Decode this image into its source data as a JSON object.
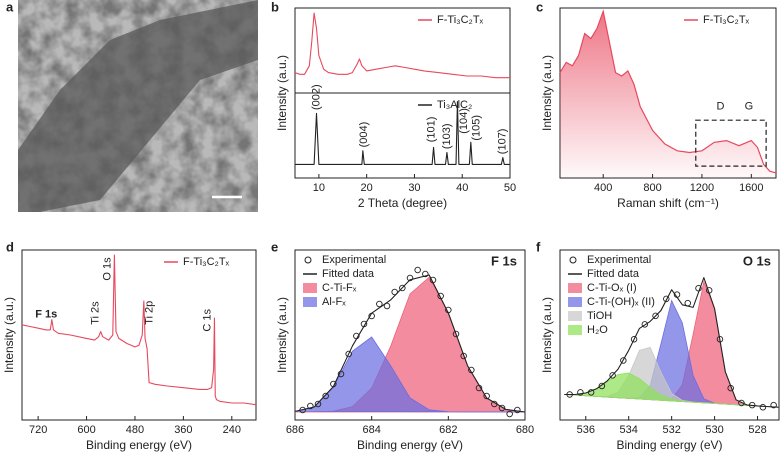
{
  "image_panel": {
    "panel_label": "a"
  },
  "chart_data": [
    {
      "type": "line",
      "panel_label": "b",
      "xlabel": "2 Theta (degree)",
      "ylabel": "Intensity (a.u.)",
      "xlim": [
        5,
        50
      ],
      "xticks": [
        10,
        20,
        30,
        40,
        50
      ],
      "ylim": [
        0,
        100
      ],
      "stacked_panels": true,
      "legend": "upper right",
      "series": [
        {
          "name": "F-Ti₃C₂Tₓ",
          "color": "#e8485e",
          "kind": "line",
          "x": [
            5,
            6,
            7,
            8,
            8.5,
            9,
            9.5,
            10,
            11,
            12,
            14,
            16,
            17,
            18,
            18.5,
            19,
            20,
            22,
            24,
            26,
            28,
            30,
            32,
            35,
            38,
            41,
            44,
            47,
            50
          ],
          "values": [
            62,
            61,
            61,
            66,
            80,
            97,
            88,
            72,
            64,
            62,
            61,
            61,
            62,
            67,
            70,
            66,
            63,
            64,
            65,
            66,
            65,
            64,
            63,
            62,
            61,
            60,
            60,
            59,
            59
          ]
        },
        {
          "name": "Ti₃AlC₂",
          "color": "#222222",
          "kind": "line",
          "x": [
            5,
            9,
            9.5,
            10,
            19,
            19.2,
            19.5,
            33.7,
            34,
            34.3,
            36.5,
            36.8,
            37.1,
            38.7,
            39,
            39.3,
            41.5,
            41.8,
            42.1,
            48.2,
            48.5,
            48.8,
            50
          ],
          "values": [
            8,
            8,
            38,
            8,
            8,
            16,
            8,
            8,
            18,
            8,
            8,
            15,
            8,
            8,
            45,
            8,
            8,
            21,
            8,
            8,
            12,
            8,
            8
          ]
        }
      ],
      "annotations": [
        {
          "text": "(002)",
          "x": 9.5,
          "y": 40,
          "orientation": "vertical"
        },
        {
          "text": "(004)",
          "x": 19.5,
          "y": 18,
          "orientation": "vertical"
        },
        {
          "text": "(101)",
          "x": 33.6,
          "y": 21,
          "orientation": "vertical"
        },
        {
          "text": "(103)",
          "x": 36.8,
          "y": 17,
          "orientation": "vertical"
        },
        {
          "text": "(104)",
          "x": 40.4,
          "y": 26,
          "orientation": "vertical"
        },
        {
          "text": "(105)",
          "x": 43,
          "y": 22,
          "orientation": "vertical"
        },
        {
          "text": "(107)",
          "x": 48.5,
          "y": 14,
          "orientation": "vertical"
        }
      ]
    },
    {
      "type": "line",
      "panel_label": "c",
      "xlabel": "Raman shift (cm⁻¹)",
      "ylabel": "Intensity (a.u.)",
      "xlim": [
        50,
        1800
      ],
      "xticks": [
        400,
        800,
        1200,
        1600
      ],
      "ylim": [
        0,
        100
      ],
      "legend": "upper right",
      "series": [
        {
          "name": "F-Ti₃C₂Tₓ",
          "color": "#e8485e",
          "kind": "area",
          "x": [
            50,
            100,
            150,
            200,
            250,
            300,
            350,
            400,
            450,
            500,
            550,
            600,
            650,
            700,
            800,
            900,
            1000,
            1100,
            1200,
            1300,
            1400,
            1500,
            1600,
            1650,
            1700,
            1750,
            1800
          ],
          "values": [
            62,
            68,
            66,
            72,
            85,
            82,
            88,
            98,
            80,
            62,
            60,
            63,
            55,
            42,
            28,
            20,
            16,
            15,
            16,
            21,
            22,
            19,
            22,
            18,
            8,
            4,
            3
          ]
        }
      ],
      "annotations": [
        {
          "text": "D",
          "x": 1350,
          "y": 42,
          "orientation": "horizontal"
        },
        {
          "text": "G",
          "x": 1580,
          "y": 42,
          "orientation": "horizontal"
        }
      ],
      "highlight_box": {
        "x": [
          1150,
          1720
        ],
        "y": [
          7,
          34
        ]
      }
    },
    {
      "type": "line",
      "panel_label": "d",
      "xlabel": "Binding energy (eV)",
      "ylabel": "Intensity (a.u.)",
      "xlim": [
        760,
        180
      ],
      "xticks": [
        720,
        600,
        480,
        360,
        240
      ],
      "ylim": [
        0,
        100
      ],
      "legend": "upper right",
      "series": [
        {
          "name": "F-Ti₃C₂Tₓ",
          "color": "#e8485e",
          "kind": "line",
          "x": [
            760,
            740,
            720,
            700,
            690,
            686,
            682,
            670,
            640,
            600,
            580,
            570,
            565,
            560,
            545,
            535,
            531,
            527,
            520,
            500,
            480,
            470,
            462,
            458,
            455,
            450,
            445,
            430,
            400,
            360,
            320,
            300,
            290,
            285,
            283,
            281,
            278,
            270,
            240,
            210,
            180
          ],
          "values": [
            56,
            55,
            54,
            53,
            53,
            59,
            53,
            51,
            50,
            48,
            47,
            49,
            52,
            49,
            47,
            50,
            97,
            52,
            48,
            45,
            43,
            44,
            50,
            70,
            48,
            42,
            22,
            21,
            20,
            19,
            18,
            18,
            19,
            30,
            60,
            14,
            12,
            11,
            10,
            10,
            9
          ]
        }
      ],
      "annotations": [
        {
          "text": "F 1s",
          "x": 700,
          "y": 62,
          "orientation": "horizontal",
          "color": "#e0304a",
          "weight": "bold"
        },
        {
          "text": "Ti 2s",
          "x": 578,
          "y": 56,
          "orientation": "vertical",
          "color": "#e0304a"
        },
        {
          "text": "O 1s",
          "x": 548,
          "y": 82,
          "orientation": "vertical",
          "color": "#e0304a"
        },
        {
          "text": "Ti 2p",
          "x": 444,
          "y": 56,
          "orientation": "vertical",
          "color": "#e0304a"
        },
        {
          "text": "C 1s",
          "x": 300,
          "y": 52,
          "orientation": "vertical",
          "color": "#e0304a"
        }
      ]
    },
    {
      "type": "line",
      "panel_label": "e",
      "title": "F 1s",
      "xlabel": "Binding energy (eV)",
      "ylabel": "Intensity (a.u.)",
      "xlim": [
        686,
        680
      ],
      "xticks": [
        686,
        684,
        682,
        680
      ],
      "ylim": [
        0,
        85
      ],
      "legend": "upper left",
      "series": [
        {
          "name": "Experimental",
          "color": "#222222",
          "kind": "scatter",
          "x": [
            685.8,
            685.6,
            685.4,
            685.2,
            685,
            684.8,
            684.6,
            684.4,
            684.2,
            684,
            683.8,
            683.6,
            683.4,
            683.2,
            683,
            682.8,
            682.6,
            682.4,
            682.2,
            682,
            681.8,
            681.6,
            681.4,
            681.2,
            681,
            680.8,
            680.6,
            680.4,
            680.2
          ],
          "values": [
            5,
            7,
            8,
            12,
            18,
            23,
            33,
            42,
            48,
            52,
            58,
            57,
            64,
            66,
            71,
            75,
            73,
            70,
            62,
            55,
            43,
            32,
            25,
            16,
            12,
            8,
            6,
            3,
            5
          ]
        },
        {
          "name": "Fitted data",
          "color": "#222222",
          "kind": "line",
          "x": [
            686,
            685.5,
            685,
            684.5,
            684,
            683.5,
            683,
            682.5,
            682,
            681.5,
            681,
            680.5,
            680
          ],
          "values": [
            4.3,
            6.5,
            16.7,
            37.1,
            53.4,
            60.1,
            70.1,
            72.5,
            53.5,
            27.2,
            11,
            5.3,
            4
          ]
        },
        {
          "name": "C-Ti-Fₓ",
          "color": "#f0607a",
          "kind": "peak",
          "x": [
            686,
            685.5,
            685,
            684.5,
            684,
            683.5,
            683,
            682.5,
            682,
            681.5,
            681,
            680.5,
            680
          ],
          "values": [
            4,
            4,
            4.4,
            6.7,
            15.9,
            37.1,
            63,
            71.4,
            53.4,
            27.2,
            11,
            5.3,
            4
          ]
        },
        {
          "name": "Al-Fₓ",
          "color": "#6a6ee0",
          "kind": "peak",
          "x": [
            686,
            685.5,
            685,
            684.5,
            684,
            683.5,
            683,
            682.5,
            682,
            681.5,
            681,
            680.5,
            680
          ],
          "values": [
            4.3,
            6.5,
            16.3,
            34.4,
            41.5,
            27,
            11.1,
            5.1,
            4.1,
            4,
            4,
            4,
            4
          ]
        }
      ]
    },
    {
      "type": "line",
      "panel_label": "f",
      "title": "O 1s",
      "xlabel": "Binding energy (eV)",
      "ylabel": "Intensity (a.u.)",
      "xlim": [
        537.2,
        527
      ],
      "xticks": [
        536,
        534,
        532,
        530,
        528
      ],
      "ylim": [
        0,
        80
      ],
      "legend": "upper left",
      "series": [
        {
          "name": "Experimental",
          "color": "#222222",
          "kind": "scatter",
          "x": [
            536.75,
            536.25,
            535.75,
            535.25,
            534.75,
            534.25,
            533.75,
            533.25,
            532.75,
            532.25,
            531.75,
            531.25,
            530.75,
            530.25,
            529.75,
            529.25,
            528.75,
            528.25,
            527.75,
            527.25
          ],
          "values": [
            12,
            13,
            13,
            16,
            21,
            28,
            38,
            45,
            49,
            57,
            59,
            55,
            62,
            61,
            38,
            15,
            8,
            7,
            6,
            7
          ]
        },
        {
          "name": "Fitted data",
          "color": "#222222",
          "kind": "line",
          "x": [
            537,
            536.5,
            536,
            535.5,
            535,
            534.5,
            534,
            533.5,
            533,
            532.5,
            532,
            531.5,
            531,
            530.5,
            530,
            529.5,
            529,
            528.5,
            528,
            527.5,
            527
          ],
          "values": [
            12,
            12,
            12.7,
            14.7,
            18.4,
            23.9,
            32.8,
            43.1,
            46.4,
            51.5,
            61.3,
            54.2,
            53,
            67,
            52.4,
            22.7,
            9.5,
            7.1,
            6.6,
            6.3,
            6
          ]
        },
        {
          "name": "C-Ti-Oₓ (I)",
          "color": "#f0607a",
          "kind": "peak",
          "x": [
            537,
            536.5,
            536,
            535.5,
            535,
            534.5,
            534,
            533.5,
            533,
            532.5,
            532,
            531.5,
            531,
            530.5,
            530,
            529.5,
            529,
            528.5,
            528,
            527.5,
            527
          ],
          "values": [
            12,
            11.7,
            11.4,
            11.1,
            10.8,
            10.5,
            10.2,
            9.9,
            9.6,
            9.3,
            9.8,
            16.6,
            40.4,
            65.1,
            52.3,
            22.7,
            9.5,
            7.1,
            6.6,
            6.3,
            6
          ]
        },
        {
          "name": "C-Ti-(OH)ₓ (II)",
          "color": "#6a6ee0",
          "kind": "peak",
          "x": [
            537,
            536.5,
            536,
            535.5,
            535,
            534.5,
            534,
            533.5,
            533,
            532.5,
            532,
            531.5,
            531,
            530.5,
            530,
            529.5,
            529,
            528.5,
            528,
            527.5,
            527
          ],
          "values": [
            12,
            11.7,
            11.4,
            11.1,
            10.8,
            10.5,
            10.2,
            10.6,
            16.1,
            35.8,
            56.2,
            45.6,
            21,
            10,
            7.9,
            7.5,
            7.2,
            6.9,
            6.6,
            6.3,
            6
          ]
        },
        {
          "name": "TiOH",
          "color": "#c8c8c8",
          "kind": "peak",
          "x": [
            537,
            536.5,
            536,
            535.5,
            535,
            534.5,
            534,
            533.5,
            533,
            532.5,
            532,
            531.5,
            531,
            530.5,
            530,
            529.5,
            529,
            528.5,
            528,
            527.5,
            527
          ],
          "values": [
            12,
            11.7,
            11.4,
            11.1,
            11.1,
            13,
            20.9,
            32.8,
            34.2,
            22.5,
            12.5,
            9.2,
            8.4,
            8.1,
            7.8,
            7.5,
            7.2,
            6.9,
            6.6,
            6.3,
            6
          ]
        },
        {
          "name": "H₂O",
          "color": "#8fe05a",
          "kind": "peak",
          "x": [
            537,
            536.5,
            536,
            535.5,
            535,
            534.5,
            534,
            533.5,
            533,
            532.5,
            532,
            531.5,
            531,
            530.5,
            530,
            529.5,
            529,
            528.5,
            528,
            527.5,
            527
          ],
          "values": [
            12,
            12,
            12.7,
            14.7,
            18.1,
            21.4,
            22.1,
            19.5,
            15.3,
            11.8,
            9.8,
            8.9,
            8.4,
            8.1,
            7.8,
            7.5,
            7.2,
            6.9,
            6.6,
            6.3,
            6
          ]
        }
      ]
    }
  ]
}
